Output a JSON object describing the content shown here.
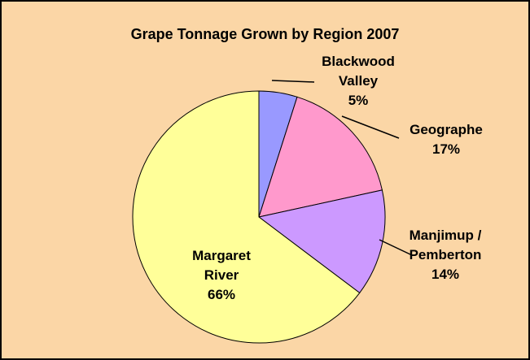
{
  "chart_data": {
    "type": "pie",
    "title": "Grape Tonnage Grown by Region 2007",
    "categories": [
      "Blackwood Valley",
      "Geographe",
      "Manjimup / Pemberton",
      "Margaret River"
    ],
    "values": [
      5,
      17,
      14,
      66
    ],
    "value_labels": [
      "5%",
      "17%",
      "14%",
      "66%"
    ],
    "colors": [
      "#9999ff",
      "#ff99cc",
      "#cc99ff",
      "#ffff99"
    ]
  }
}
